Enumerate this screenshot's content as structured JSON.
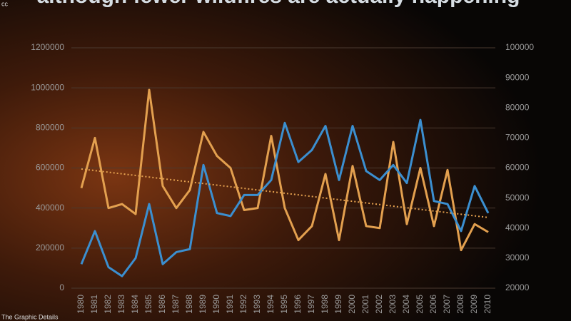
{
  "chart_data": {
    "type": "line",
    "title": "although fewer wildfires are actually happening",
    "license": "cc",
    "credit": "The Graphic Details",
    "categories": [
      "1980",
      "1981",
      "1982",
      "1983",
      "1984",
      "1985",
      "1986",
      "1987",
      "1988",
      "1989",
      "1990",
      "1991",
      "1992",
      "1993",
      "1994",
      "1995",
      "1996",
      "1997",
      "1998",
      "1999",
      "2000",
      "2001",
      "2002",
      "2003",
      "2004",
      "2005",
      "2006",
      "2007",
      "2008",
      "2009",
      "2010"
    ],
    "series": [
      {
        "color": "#e3a04f",
        "values": [
          500000,
          750000,
          400000,
          420000,
          370000,
          990000,
          510000,
          400000,
          490000,
          780000,
          660000,
          600000,
          390000,
          400000,
          760000,
          400000,
          240000,
          310000,
          570000,
          240000,
          610000,
          310000,
          300000,
          730000,
          320000,
          600000,
          310000,
          590000,
          190000,
          320000,
          280000
        ]
      },
      {
        "color": "#3b8fd0",
        "axis": "y2",
        "values": [
          28000,
          39000,
          27000,
          24000,
          30000,
          48000,
          28000,
          32000,
          33000,
          61000,
          45000,
          44000,
          51000,
          51000,
          56000,
          75000,
          62000,
          66000,
          74000,
          56000,
          74000,
          59000,
          56000,
          61000,
          55000,
          76000,
          49000,
          48000,
          39000,
          54000,
          45000
        ]
      }
    ],
    "trendline": {
      "color": "#e3a04f",
      "values": [
        595000,
        353000
      ]
    },
    "ylim": [
      0,
      1200000
    ],
    "yticks": [
      0,
      200000,
      400000,
      600000,
      800000,
      1000000,
      1200000
    ],
    "y2lim": [
      20000,
      100000
    ],
    "y2ticks": [
      20000,
      30000,
      40000,
      50000,
      60000,
      70000,
      80000,
      90000,
      100000
    ],
    "grid": true
  }
}
